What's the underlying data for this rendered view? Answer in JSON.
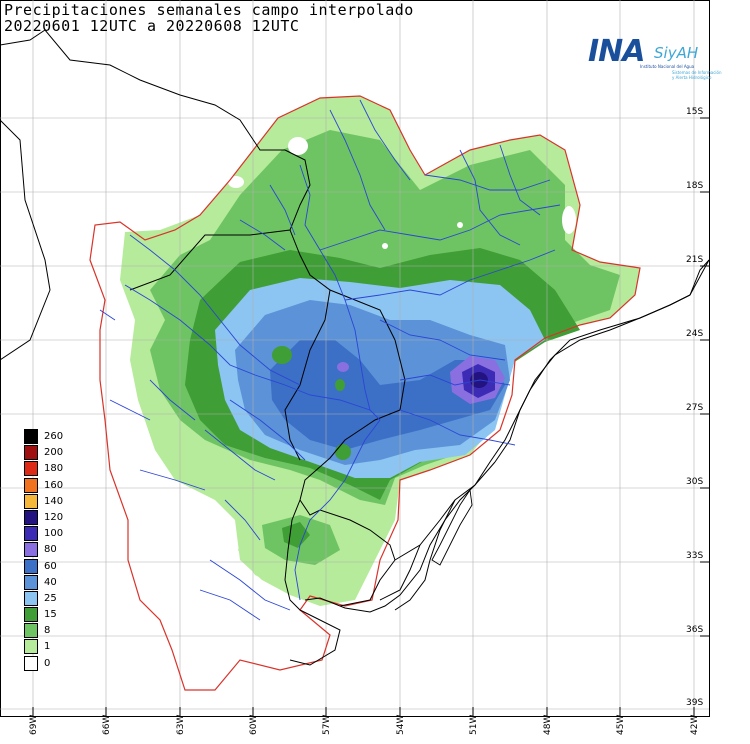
{
  "title_line1": "Precipitaciones semanales campo interpolado",
  "title_line2": "20220601 12UTC a 20220608 12UTC",
  "logo": {
    "ina": "INA",
    "siyah": "SiyAH",
    "subtitle": "Instituto Nacional del Agua",
    "tagline1": "Sistemas de Información",
    "tagline2": "y Alerta Hidrológico"
  },
  "lat_labels": [
    "15S",
    "18S",
    "21S",
    "24S",
    "27S",
    "30S",
    "33S",
    "36S",
    "39S"
  ],
  "lon_labels": [
    "69W",
    "66W",
    "63W",
    "60W",
    "57W",
    "54W",
    "51W",
    "48W",
    "45W",
    "42W"
  ],
  "legend": [
    {
      "label": "260",
      "color": "#000000"
    },
    {
      "label": "200",
      "color": "#a01010"
    },
    {
      "label": "180",
      "color": "#dd2a16"
    },
    {
      "label": "160",
      "color": "#f0721e"
    },
    {
      "label": "140",
      "color": "#f5b83a"
    },
    {
      "label": "120",
      "color": "#221380"
    },
    {
      "label": "100",
      "color": "#3b2bb5"
    },
    {
      "label": "80",
      "color": "#8a6fe0"
    },
    {
      "label": "60",
      "color": "#3c6fc6"
    },
    {
      "label": "40",
      "color": "#5b92d8"
    },
    {
      "label": "25",
      "color": "#8cc4f2"
    },
    {
      "label": "15",
      "color": "#3f9e35"
    },
    {
      "label": "8",
      "color": "#6ec462"
    },
    {
      "label": "1",
      "color": "#b6eb9b"
    },
    {
      "label": "0",
      "color": "#ffffff"
    }
  ]
}
